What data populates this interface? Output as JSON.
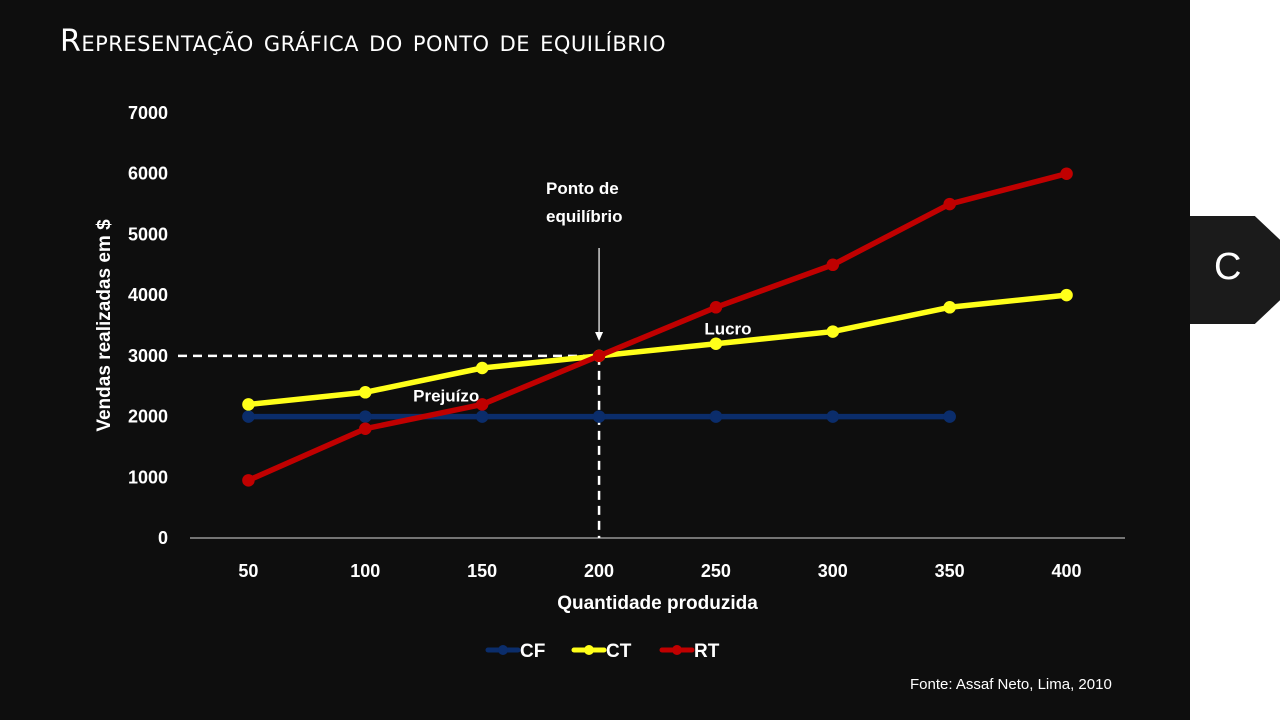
{
  "slide": {
    "title": "Representação gráfica do ponto de equilíbrio",
    "side_tab_letter": "C",
    "source": "Fonte: Assaf Neto, Lima, 2010"
  },
  "chart_data": {
    "type": "line",
    "xlabel": "Quantidade produzida",
    "ylabel": "Vendas realizadas em $",
    "categories": [
      50,
      100,
      150,
      200,
      250,
      300,
      350,
      400
    ],
    "ylim": [
      0,
      7000
    ],
    "yticks": [
      0,
      1000,
      2000,
      3000,
      4000,
      5000,
      6000,
      7000
    ],
    "grid": false,
    "legend_position": "bottom",
    "series": [
      {
        "name": "CF",
        "color": "#0b2d6b",
        "values": [
          2000,
          2000,
          2000,
          2000,
          2000,
          2000,
          2000,
          null
        ]
      },
      {
        "name": "CT",
        "color": "#ffff1a",
        "values": [
          2200,
          2400,
          2800,
          3000,
          3200,
          3400,
          3800,
          4000
        ]
      },
      {
        "name": "RT",
        "color": "#c00000",
        "values": [
          950,
          1800,
          2200,
          3000,
          3800,
          4500,
          5500,
          6000
        ]
      }
    ],
    "annotations": {
      "breakeven_lines": [
        "Ponto de",
        "equilíbrio"
      ],
      "breakeven_x": 200,
      "breakeven_y": 3000,
      "loss_label": "Prejuízo",
      "loss_x": 150,
      "loss_y": 2350,
      "profit_label": "Lucro",
      "profit_x": 250,
      "profit_y": 3450
    }
  }
}
